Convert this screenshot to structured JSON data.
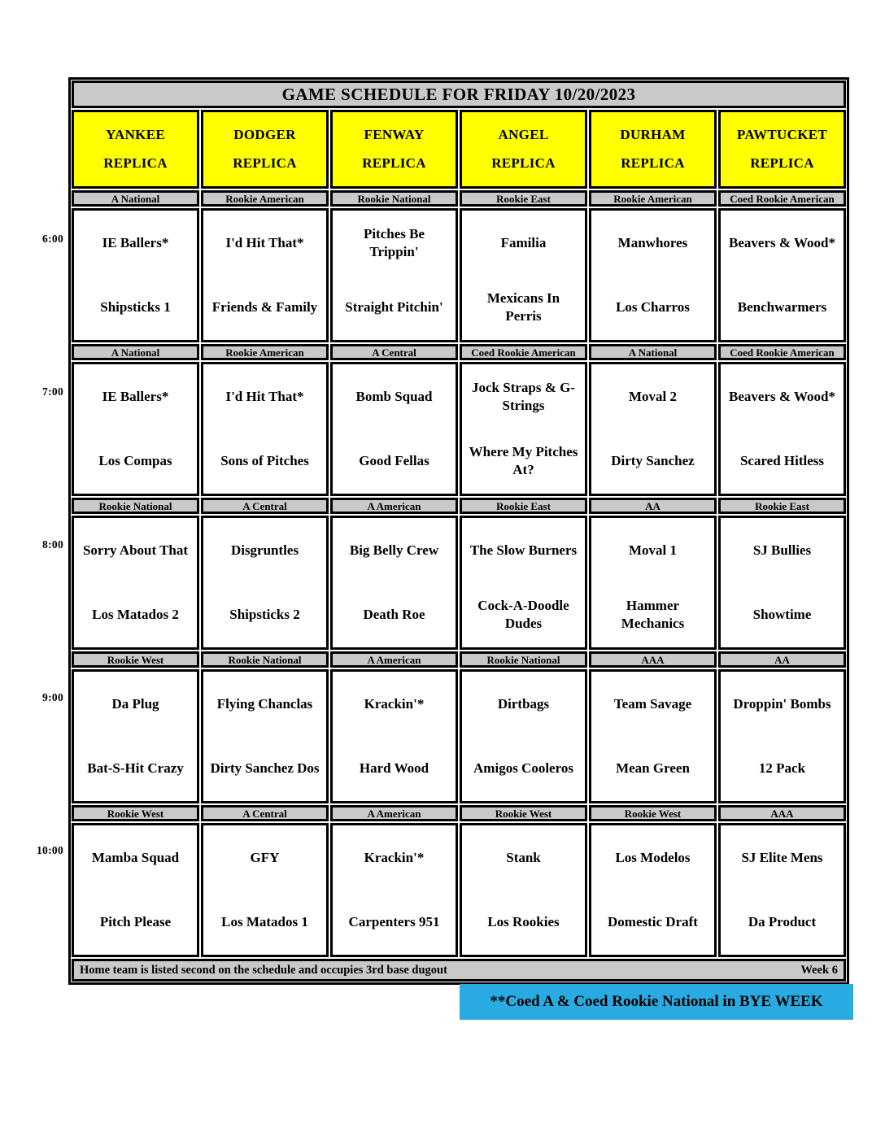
{
  "title": "GAME SCHEDULE FOR FRIDAY 10/20/2023",
  "columns": [
    {
      "line1": "YANKEE",
      "line2": "REPLICA"
    },
    {
      "line1": "DODGER",
      "line2": "REPLICA"
    },
    {
      "line1": "FENWAY",
      "line2": "REPLICA"
    },
    {
      "line1": "ANGEL",
      "line2": "REPLICA"
    },
    {
      "line1": "DURHAM",
      "line2": "REPLICA"
    },
    {
      "line1": "PAWTUCKET",
      "line2": "REPLICA"
    }
  ],
  "time_blocks": [
    {
      "time": "6:00",
      "games": [
        {
          "division": "A National",
          "away": "IE Ballers*",
          "home": "Shipsticks 1"
        },
        {
          "division": "Rookie American",
          "away": "I'd Hit That*",
          "home": "Friends & Family"
        },
        {
          "division": "Rookie National",
          "away": "Pitches Be Trippin'",
          "home": "Straight Pitchin'"
        },
        {
          "division": "Rookie East",
          "away": "Familia",
          "home": "Mexicans In Perris"
        },
        {
          "division": "Rookie American",
          "away": "Manwhores",
          "home": "Los Charros"
        },
        {
          "division": "Coed Rookie American",
          "away": "Beavers & Wood*",
          "home": "Benchwarmers"
        }
      ]
    },
    {
      "time": "7:00",
      "games": [
        {
          "division": "A National",
          "away": "IE Ballers*",
          "home": "Los Compas"
        },
        {
          "division": "Rookie American",
          "away": "I'd Hit That*",
          "home": "Sons of Pitches"
        },
        {
          "division": "A Central",
          "away": "Bomb Squad",
          "home": "Good Fellas"
        },
        {
          "division": "Coed Rookie American",
          "away": "Jock Straps & G-Strings",
          "home": "Where My Pitches At?"
        },
        {
          "division": "A National",
          "away": "Moval 2",
          "home": "Dirty Sanchez"
        },
        {
          "division": "Coed Rookie American",
          "away": "Beavers & Wood*",
          "home": "Scared Hitless"
        }
      ]
    },
    {
      "time": "8:00",
      "games": [
        {
          "division": "Rookie National",
          "away": "Sorry About That",
          "home": "Los Matados 2"
        },
        {
          "division": "A Central",
          "away": "Disgruntles",
          "home": "Shipsticks 2"
        },
        {
          "division": "A American",
          "away": "Big Belly Crew",
          "home": "Death Roe"
        },
        {
          "division": "Rookie East",
          "away": "The Slow Burners",
          "home": "Cock-A-Doodle Dudes"
        },
        {
          "division": "AA",
          "away": "Moval 1",
          "home": "Hammer Mechanics"
        },
        {
          "division": "Rookie East",
          "away": "SJ Bullies",
          "home": "Showtime"
        }
      ]
    },
    {
      "time": "9:00",
      "games": [
        {
          "division": "Rookie West",
          "away": "Da Plug",
          "home": "Bat-S-Hit Crazy"
        },
        {
          "division": "Rookie National",
          "away": "Flying Chanclas",
          "home": "Dirty Sanchez Dos"
        },
        {
          "division": "A American",
          "away": "Krackin'*",
          "home": "Hard Wood"
        },
        {
          "division": "Rookie National",
          "away": "Dirtbags",
          "home": "Amigos Cooleros"
        },
        {
          "division": "AAA",
          "away": "Team Savage",
          "home": "Mean Green"
        },
        {
          "division": "AA",
          "away": "Droppin' Bombs",
          "home": "12 Pack"
        }
      ]
    },
    {
      "time": "10:00",
      "games": [
        {
          "division": "Rookie West",
          "away": "Mamba Squad",
          "home": "Pitch Please"
        },
        {
          "division": "A Central",
          "away": "GFY",
          "home": "Los Matados 1"
        },
        {
          "division": "A American",
          "away": "Krackin'*",
          "home": "Carpenters 951"
        },
        {
          "division": "Rookie West",
          "away": "Stank",
          "home": "Los Rookies"
        },
        {
          "division": "Rookie West",
          "away": "Los Modelos",
          "home": "Domestic Draft"
        },
        {
          "division": "AAA",
          "away": "SJ Elite Mens",
          "home": "Da Product"
        }
      ]
    }
  ],
  "footer": {
    "note": "Home team is listed second on the schedule and occupies 3rd base dugout",
    "week": "Week 6"
  },
  "bye_note": "**Coed A & Coed Rookie National in BYE WEEK",
  "colors": {
    "header_yellow": "#ffff00",
    "bar_gray": "#c9c9c9",
    "note_blue": "#29abe2",
    "border_black": "#000000"
  }
}
